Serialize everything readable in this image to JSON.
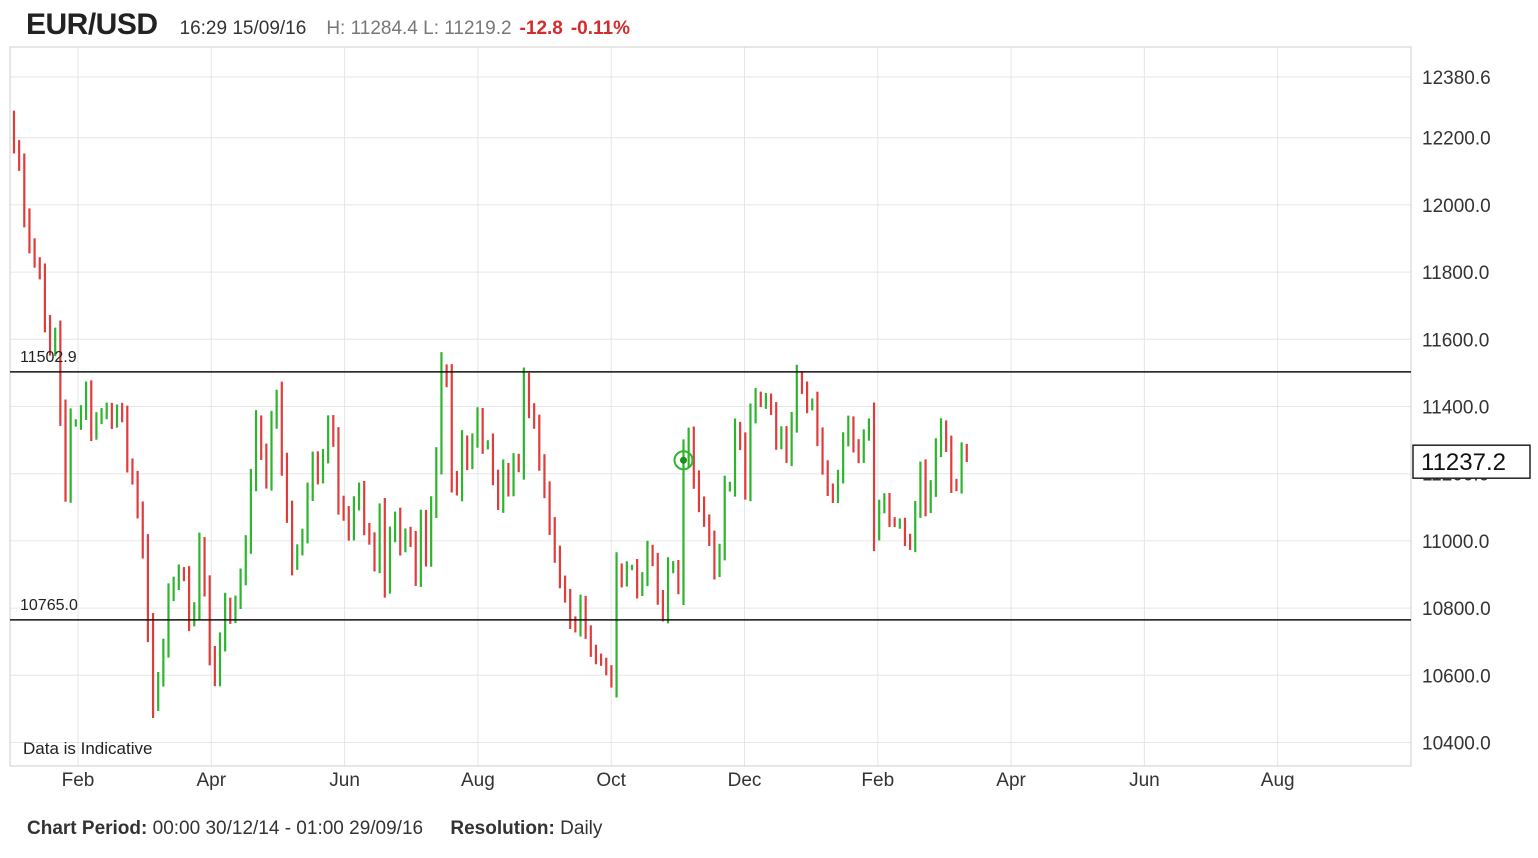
{
  "header": {
    "symbol": "EUR/USD",
    "time": "16:29 15/09/16",
    "high_low": "H: 11284.4 L: 11219.2",
    "change": "-12.8",
    "change_pct": "-0.11%",
    "change_color": "#d62b2b"
  },
  "footer": {
    "period_label": "Chart Period:",
    "period_value": "00:00 30/12/14 - 01:00 29/09/16",
    "resolution_label": "Resolution:",
    "resolution_value": "Daily"
  },
  "chart_data": {
    "type": "ohlc",
    "title": "EUR/USD",
    "ylim": [
      10330,
      12470
    ],
    "yticks": [
      12380.6,
      12200.0,
      12000.0,
      11800.0,
      11600.0,
      11400.0,
      11200.0,
      11000.0,
      10800.0,
      10600.0,
      10400.0
    ],
    "ytick_labels": [
      "12380.6",
      "12200.0",
      "12000.0",
      "11800.0",
      "11600.0",
      "11400.0",
      "11200.0",
      "11000.0",
      "10800.0",
      "10600.0",
      "10400.0"
    ],
    "xtick_labels": [
      "Feb",
      "Apr",
      "Jun",
      "Aug",
      "Oct",
      "Dec",
      "Feb",
      "Apr",
      "Jun",
      "Aug"
    ],
    "levels": [
      {
        "value": 11502.9,
        "label": "11502.9"
      },
      {
        "value": 10765.0,
        "label": "10765.0"
      }
    ],
    "last_price": 11237.2,
    "last_price_label": "11237.2",
    "note": "Data is Indicative",
    "grid": true,
    "up_color": "#2db52d",
    "down_color": "#e03c3c",
    "marker_bar_index": 130,
    "marker_value": 11240,
    "closes": [
      12170,
      12120,
      11960,
      11880,
      11830,
      11790,
      11650,
      11570,
      11610,
      11380,
      11150,
      11350,
      11350,
      11380,
      11450,
      11320,
      11360,
      11380,
      11390,
      11350,
      11390,
      11370,
      11230,
      11180,
      11090,
      10970,
      10740,
      10510,
      10590,
      10680,
      10840,
      10870,
      10910,
      10890,
      10760,
      10800,
      10980,
      10860,
      10660,
      10590,
      10700,
      10810,
      10770,
      10820,
      10890,
      10990,
      11180,
      11350,
      11260,
      11180,
      11350,
      11430,
      11230,
      11080,
      10930,
      10970,
      11020,
      11140,
      11240,
      11190,
      11250,
      11350,
      11300,
      11110,
      11080,
      11020,
      11110,
      11150,
      11040,
      11000,
      10930,
      11080,
      10870,
      11010,
      11070,
      10980,
      11020,
      11000,
      10890,
      11060,
      10950,
      11100,
      11240,
      11510,
      11470,
      11190,
      11150,
      11290,
      11230,
      11300,
      11370,
      11280,
      11290,
      11190,
      11110,
      11210,
      11150,
      11240,
      11220,
      11470,
      11390,
      11350,
      11230,
      11150,
      11040,
      10960,
      10880,
      10830,
      10760,
      10740,
      10810,
      10730,
      10670,
      10650,
      10640,
      10610,
      10580,
      10910,
      10880,
      10920,
      10920,
      10850,
      10890,
      10970,
      10940,
      10830,
      10780,
      10920,
      10920,
      10860,
      11240,
      11310,
      11180,
      11110,
      11060,
      11000,
      10910,
      10970,
      11160,
      11160,
      11330,
      11290,
      11150,
      11370,
      11430,
      11410,
      11420,
      11390,
      11290,
      11320,
      11250,
      11350,
      11490,
      11450,
      11400,
      11410,
      11310,
      11220,
      11150,
      11130,
      11190,
      11300,
      11350,
      11280,
      11250,
      11310,
      11350,
      11020,
      11100,
      11120,
      11060,
      11050,
      11050,
      11000,
      10990,
      11090,
      11210,
      11100,
      11160,
      11270,
      11340,
      11280,
      11170,
      11160,
      11270,
      11250
    ]
  }
}
